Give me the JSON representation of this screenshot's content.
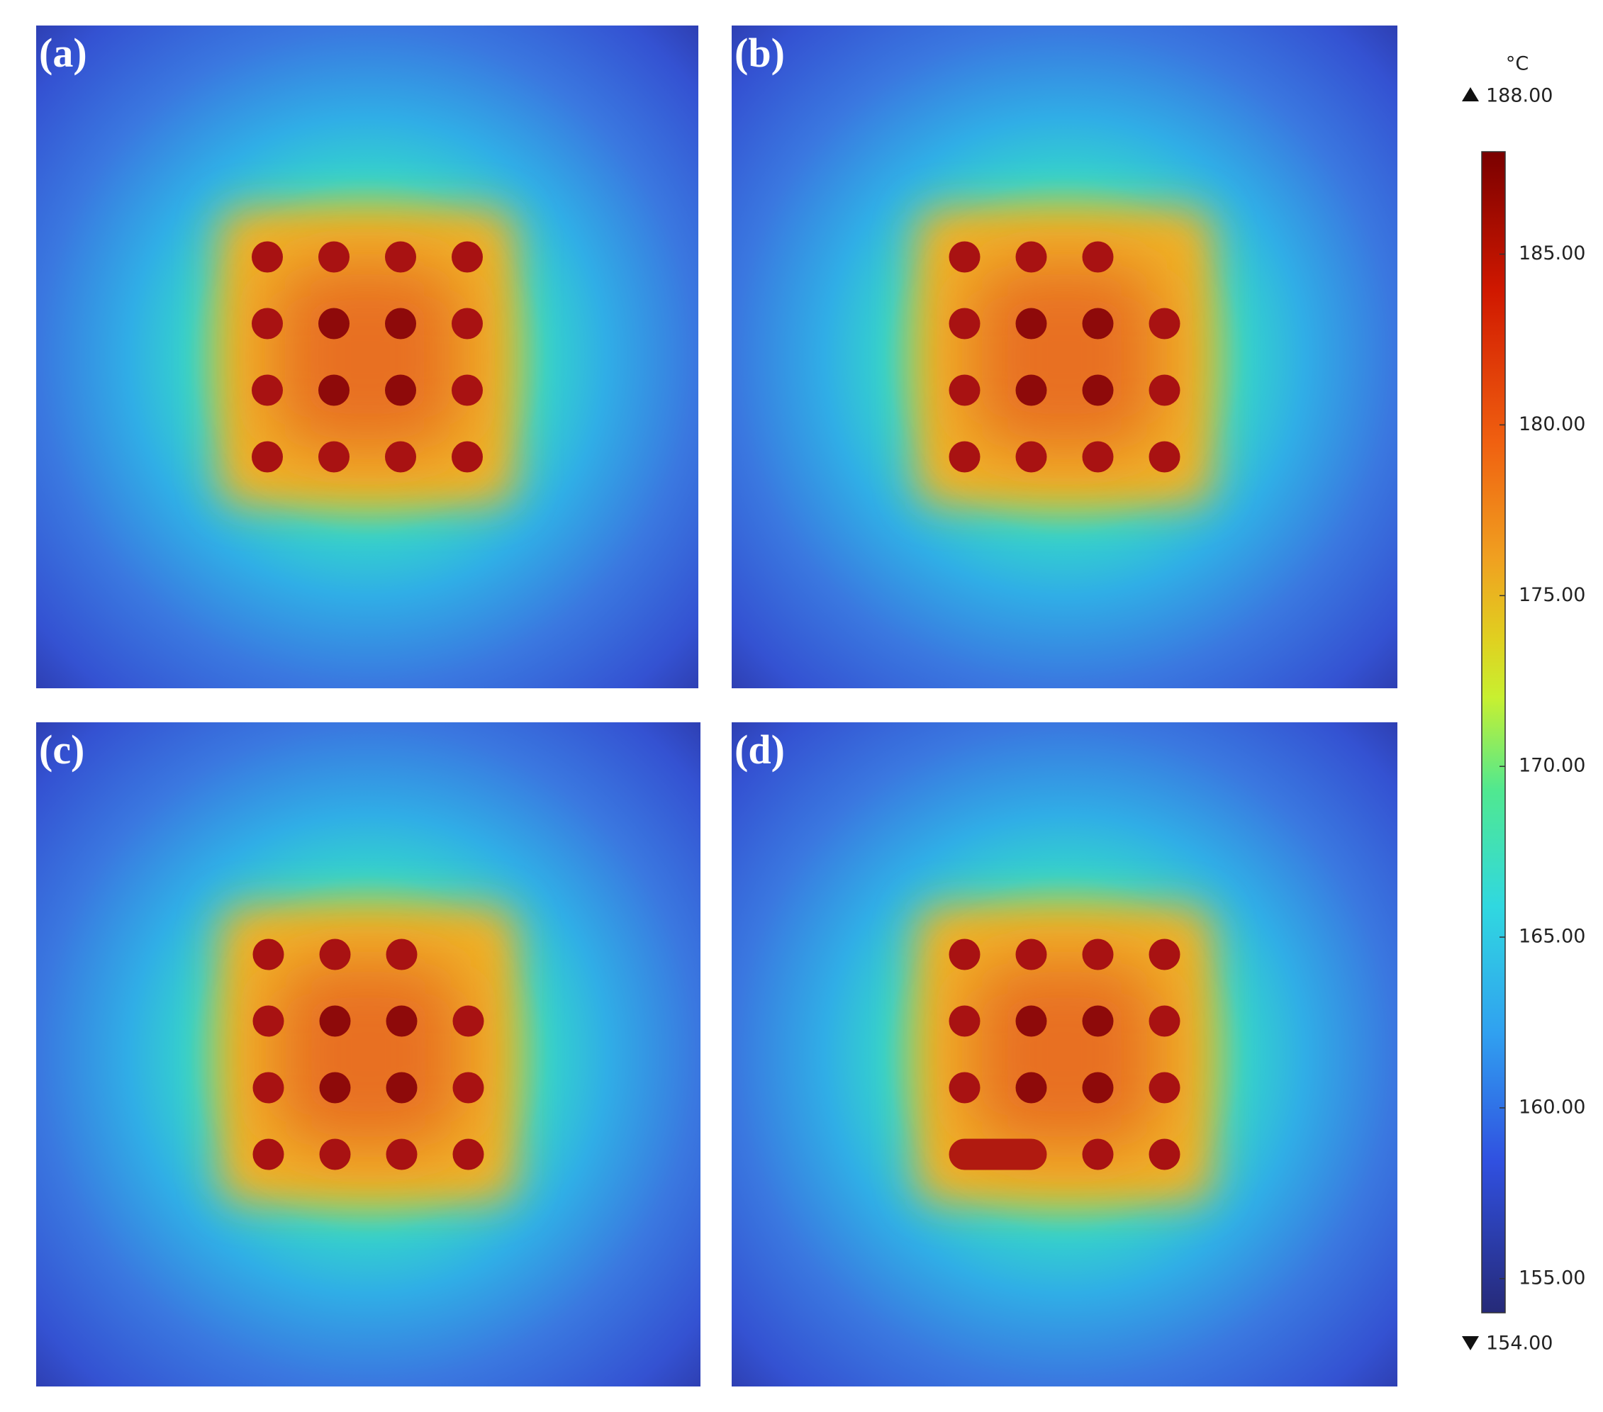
{
  "panels": [
    {
      "label": "(a)"
    },
    {
      "label": "(b)"
    },
    {
      "label": "(c)"
    },
    {
      "label": "(d)"
    }
  ],
  "colorbar": {
    "unit": "°C",
    "max": {
      "value": 188,
      "label": "188.00"
    },
    "min": {
      "value": 154,
      "label": "154.00"
    },
    "ticks": [
      {
        "value": 185,
        "label": "185.00"
      },
      {
        "value": 180,
        "label": "180.00"
      },
      {
        "value": 175,
        "label": "175.00"
      },
      {
        "value": 170,
        "label": "170.00"
      },
      {
        "value": 165,
        "label": "165.00"
      },
      {
        "value": 160,
        "label": "160.00"
      },
      {
        "value": 155,
        "label": "155.00"
      }
    ]
  }
}
